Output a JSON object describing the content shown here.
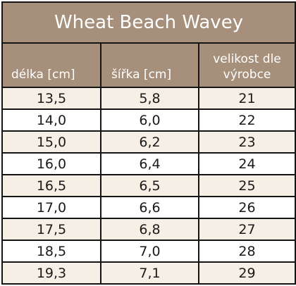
{
  "table": {
    "title": "Wheat Beach Wavey",
    "headers": [
      "délka [cm]",
      "šířka [cm]",
      "velikost dle výrobce"
    ],
    "rows": [
      [
        "13,5",
        "5,8",
        "21"
      ],
      [
        "14,0",
        "6,0",
        "22"
      ],
      [
        "15,0",
        "6,2",
        "23"
      ],
      [
        "16,0",
        "6,4",
        "24"
      ],
      [
        "16,5",
        "6,5",
        "25"
      ],
      [
        "17,0",
        "6,6",
        "26"
      ],
      [
        "17,5",
        "6,8",
        "27"
      ],
      [
        "18,5",
        "7,0",
        "28"
      ],
      [
        "19,3",
        "7,1",
        "29"
      ]
    ],
    "colors": {
      "header_bg": "#a68f7b",
      "header_text": "#ffffff",
      "stripe_row": "#f6efe5",
      "plain_row": "#ffffff",
      "border": "#141414"
    }
  }
}
